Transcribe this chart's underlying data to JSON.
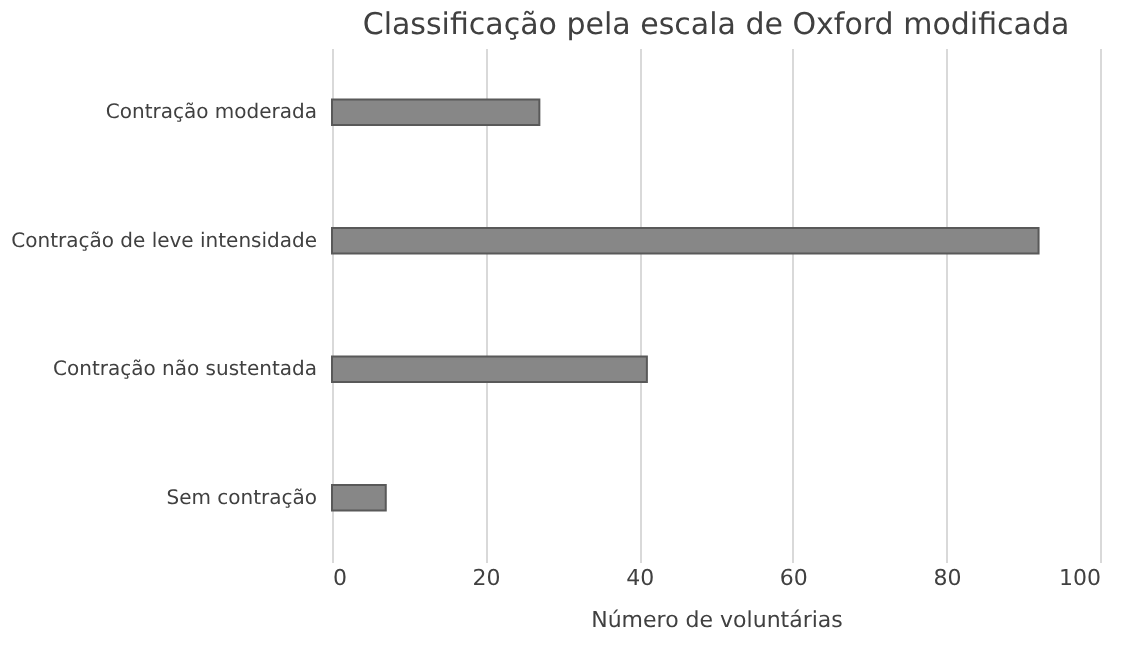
{
  "chart_data": {
    "type": "bar",
    "orientation": "horizontal",
    "title": "Classificação pela escala de Oxford modificada",
    "xlabel": "Número de voluntárias",
    "categories": [
      "Contração moderada",
      "Contração de leve intensidade",
      "Contração não sustentada",
      "Sem contração"
    ],
    "values": [
      27,
      92,
      41,
      7
    ],
    "color": "#878787",
    "xlim": [
      0,
      100
    ],
    "xticks": [
      0,
      20,
      40,
      60,
      80,
      100
    ],
    "grid": "x"
  }
}
